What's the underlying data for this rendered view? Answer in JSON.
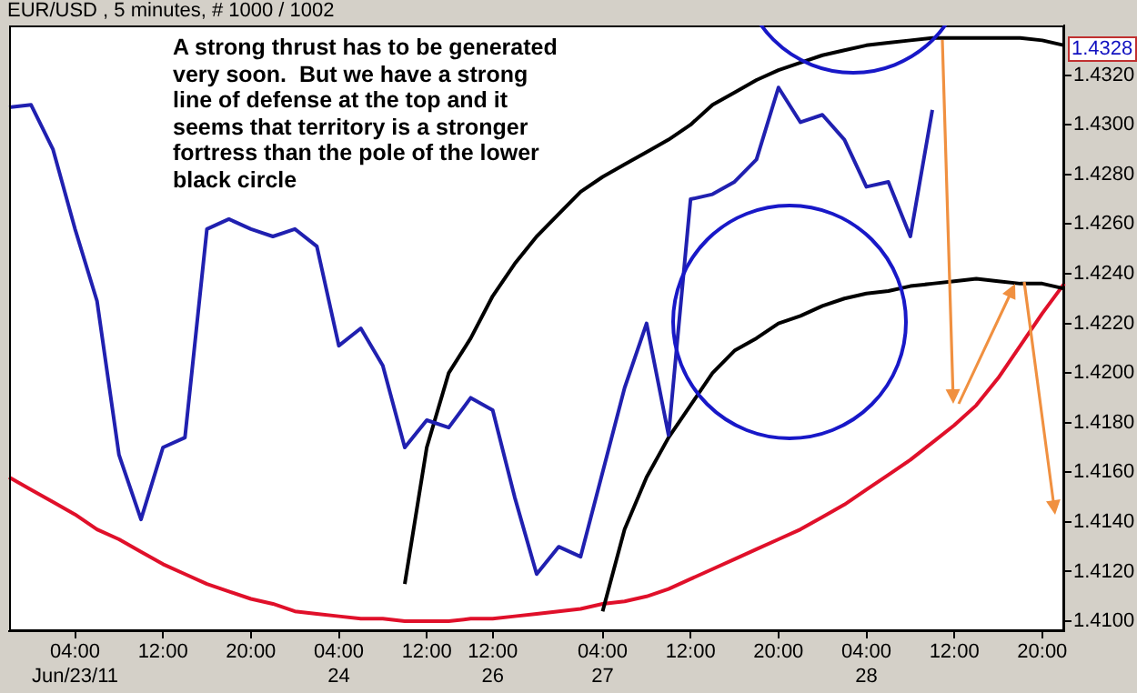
{
  "chart_data": {
    "type": "line",
    "title": "EUR/USD , 5 minutes, # 1000 / 1002",
    "annotations": [
      "A strong thrust has to be generated very soon.  But we have a strong line of defense at the top and it seems that territory is a stronger fortress than the pole of the lower black circle",
      "1.4328"
    ],
    "categories": [
      null,
      null,
      null,
      "04:00\nJun/23/11",
      null,
      null,
      null,
      "12:00",
      null,
      null,
      null,
      "20:00",
      null,
      null,
      null,
      "04:00\n24",
      null,
      null,
      null,
      "12:00",
      null,
      null,
      "12:00\n26",
      null,
      null,
      null,
      null,
      "04:00\n27",
      null,
      null,
      null,
      "12:00",
      null,
      null,
      null,
      "20:00",
      null,
      null,
      null,
      "04:00\n28",
      null,
      null,
      null,
      "12:00",
      null,
      null,
      null,
      "20:00",
      null
    ],
    "series": [
      {
        "color": "#2020b0",
        "values": [
          1.4307,
          1.4308,
          1.429,
          1.4258,
          1.4229,
          1.4167,
          1.4141,
          1.417,
          1.4174,
          1.4258,
          1.4262,
          1.4258,
          1.4255,
          1.4258,
          1.4251,
          1.4211,
          1.4218,
          1.4203,
          1.417,
          1.4181,
          1.4178,
          1.419,
          1.4185,
          1.415,
          1.4119,
          1.413,
          1.4126,
          1.416,
          1.4194,
          1.422,
          1.4175,
          1.427,
          1.4272,
          1.4277,
          1.4286,
          1.4315,
          1.4301,
          1.4304,
          1.4294,
          1.4275,
          1.4277,
          1.4255,
          1.4306,
          null,
          null,
          null,
          null,
          null,
          null
        ]
      },
      {
        "type": "line",
        "color": "#000000",
        "values": [
          null,
          null,
          null,
          null,
          null,
          null,
          null,
          null,
          null,
          null,
          null,
          null,
          null,
          null,
          null,
          null,
          null,
          null,
          1.4115,
          1.417,
          1.42,
          1.4214,
          1.4231,
          1.4244,
          1.4255,
          1.4264,
          1.4273,
          1.4279,
          1.4284,
          1.4289,
          1.4294,
          1.43,
          1.4308,
          1.4313,
          1.4318,
          1.4322,
          1.4325,
          1.4328,
          1.433,
          1.4332,
          1.4333,
          1.4334,
          1.4335,
          1.4335,
          1.4335,
          1.4335,
          1.4335,
          1.4334,
          1.4332
        ]
      },
      {
        "type": "line",
        "color": "#000000",
        "values": [
          null,
          null,
          null,
          null,
          null,
          null,
          null,
          null,
          null,
          null,
          null,
          null,
          null,
          null,
          null,
          null,
          null,
          null,
          null,
          null,
          null,
          null,
          null,
          null,
          null,
          null,
          null,
          1.4104,
          1.4137,
          1.4158,
          1.4174,
          1.4187,
          1.42,
          1.4209,
          1.4214,
          1.422,
          1.4223,
          1.4227,
          1.423,
          1.4232,
          1.4233,
          1.4235,
          1.4236,
          1.4237,
          1.4238,
          1.4237,
          1.4236,
          1.4236,
          1.4234
        ]
      },
      {
        "type": "line",
        "color": "#e0102a",
        "values": [
          1.4158,
          1.4153,
          1.4148,
          1.4143,
          1.4137,
          1.4133,
          1.4128,
          1.4123,
          1.4119,
          1.4115,
          1.4112,
          1.4109,
          1.4107,
          1.4104,
          1.4103,
          1.4102,
          1.4101,
          1.4101,
          1.41,
          1.41,
          1.41,
          1.4101,
          1.4101,
          1.4102,
          1.4103,
          1.4104,
          1.4105,
          1.4107,
          1.4108,
          1.411,
          1.4113,
          1.4117,
          1.4121,
          1.4125,
          1.4129,
          1.4133,
          1.4137,
          1.4142,
          1.4147,
          1.4153,
          1.4159,
          1.4165,
          1.4172,
          1.4179,
          1.4187,
          1.4198,
          1.4211,
          1.4224,
          1.4236
        ]
      }
    ],
    "ylim": [
      1.4096,
      1.434
    ],
    "yticks": [
      {
        "value": 1.41,
        "label": "1.4100"
      },
      {
        "value": 1.412,
        "label": "1.4120"
      },
      {
        "value": 1.414,
        "label": "1.4140"
      },
      {
        "value": 1.416,
        "label": "1.4160"
      },
      {
        "value": 1.418,
        "label": "1.4180"
      },
      {
        "value": 1.42,
        "label": "1.4200"
      },
      {
        "value": 1.422,
        "label": "1.4220"
      },
      {
        "value": 1.424,
        "label": "1.4240"
      },
      {
        "value": 1.426,
        "label": "1.4260"
      },
      {
        "value": 1.428,
        "label": "1.4280"
      },
      {
        "value": 1.43,
        "label": "1.4300"
      },
      {
        "value": 1.432,
        "label": "1.4320"
      }
    ],
    "marker": "none",
    "line_style": "solid",
    "grid": false,
    "legend": false
  }
}
